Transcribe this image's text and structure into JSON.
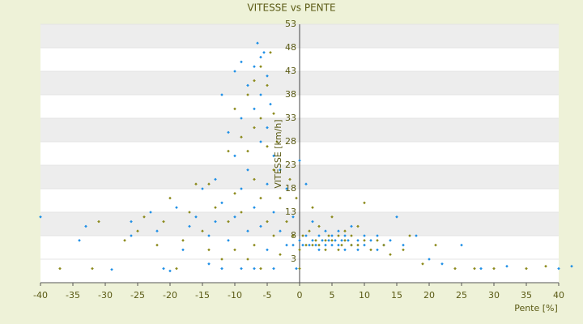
{
  "chart_data": {
    "type": "scatter",
    "title": "VITESSE vs PENTE",
    "x_label": "Pente [%]",
    "y_label": "VITESSE [km/h]",
    "xlim": [
      -40,
      40
    ],
    "xticks": [
      -40,
      -35,
      -30,
      -25,
      -20,
      -15,
      -10,
      -5,
      0,
      5,
      10,
      15,
      20,
      25,
      30,
      35,
      40
    ],
    "ylim": [
      -2,
      53
    ],
    "yticks": [
      3,
      8,
      13,
      18,
      23,
      28,
      33,
      38,
      43,
      48,
      53
    ],
    "grid": true,
    "series": [
      {
        "color": "#1e8fe6",
        "x": [
          -40,
          -34,
          -33,
          -29,
          -26,
          -26,
          -23,
          -22,
          -21,
          -20,
          -19,
          -18,
          -17,
          -16,
          -15,
          -14,
          -14,
          -13,
          -13,
          -12,
          -12,
          -12,
          -11,
          -11,
          -10,
          -10,
          -10,
          -9,
          -9,
          -9,
          -9,
          -8,
          -8,
          -8,
          -7,
          -7,
          -7,
          -7,
          -6.5,
          -6,
          -6,
          -6,
          -6,
          -5.5,
          -5,
          -5,
          -5,
          -5,
          -4.5,
          -4,
          -4,
          -4,
          -3,
          -3,
          -2,
          -2,
          -1,
          -1,
          -0.5,
          0,
          0,
          0.5,
          1,
          1,
          1.5,
          2,
          2,
          2.5,
          3,
          3,
          3.5,
          4,
          4,
          4.5,
          5,
          5,
          5.5,
          6,
          6,
          6.5,
          7,
          7,
          7.5,
          8,
          8,
          9,
          9,
          10,
          10,
          11,
          12,
          12,
          13,
          14,
          15,
          16,
          18,
          20,
          22,
          25,
          28,
          32,
          40,
          42
        ],
        "values": [
          12,
          7,
          10,
          0.8,
          11,
          8,
          13,
          9,
          1,
          0.5,
          14,
          5,
          10,
          12,
          18,
          8,
          2,
          20,
          11,
          15,
          38,
          1,
          30,
          7,
          43,
          25,
          12,
          45,
          33,
          18,
          1,
          40,
          22,
          9,
          44,
          35,
          14,
          1,
          49,
          46,
          38,
          28,
          10,
          47,
          42,
          31,
          19,
          5,
          36,
          25,
          13,
          1,
          22,
          9,
          18,
          6,
          12,
          6,
          1,
          24,
          7,
          6,
          8,
          19,
          6,
          7,
          11,
          6,
          8,
          5,
          7,
          6,
          9,
          7,
          6,
          8,
          7,
          6,
          9,
          7,
          8,
          5,
          7,
          6,
          10,
          7,
          5,
          8,
          6,
          7,
          5,
          8,
          6,
          7,
          12,
          6,
          8,
          3,
          2,
          6,
          1,
          1.5,
          1,
          1.5
        ]
      },
      {
        "color": "#8c8a1c",
        "x": [
          -37,
          -32,
          -31,
          -27,
          -25,
          -24,
          -22,
          -21,
          -20,
          -19,
          -18,
          -17,
          -16,
          -15,
          -14,
          -14,
          -13,
          -12,
          -11,
          -11,
          -10,
          -10,
          -10,
          -9,
          -9,
          -8,
          -8,
          -8,
          -7,
          -7,
          -7,
          -7,
          -6,
          -6,
          -6,
          -6,
          -5,
          -5,
          -5,
          -4.5,
          -4,
          -4,
          -4,
          -3.5,
          -3,
          -3,
          -2,
          -1.5,
          -1,
          -0.5,
          0,
          0,
          0.5,
          1,
          1.5,
          2,
          2,
          2.5,
          3,
          3,
          4,
          4,
          4.5,
          5,
          5,
          6,
          6,
          6.5,
          7,
          7,
          8,
          8,
          9,
          9,
          10,
          10,
          11,
          12,
          13,
          14,
          16,
          17,
          19,
          21,
          24,
          27,
          30,
          35,
          38
        ],
        "values": [
          1,
          1,
          11,
          7,
          9,
          12,
          6,
          11,
          16,
          1,
          7,
          13,
          19,
          9,
          5,
          19,
          14,
          3,
          11,
          26,
          17,
          35,
          5,
          29,
          13,
          38,
          26,
          3,
          41,
          31,
          20,
          6,
          44,
          33,
          16,
          1,
          40,
          27,
          11,
          47,
          34,
          22,
          8,
          28,
          16,
          4,
          11,
          20,
          8,
          16,
          5,
          1,
          8,
          6,
          9,
          6,
          14,
          7,
          6,
          10,
          7,
          5,
          8,
          7,
          12,
          8,
          5,
          6,
          7,
          9,
          6,
          8,
          10,
          6,
          7,
          15,
          5,
          7,
          6,
          4,
          5,
          8,
          2,
          6,
          1,
          1,
          1,
          1,
          1.5
        ]
      }
    ]
  }
}
